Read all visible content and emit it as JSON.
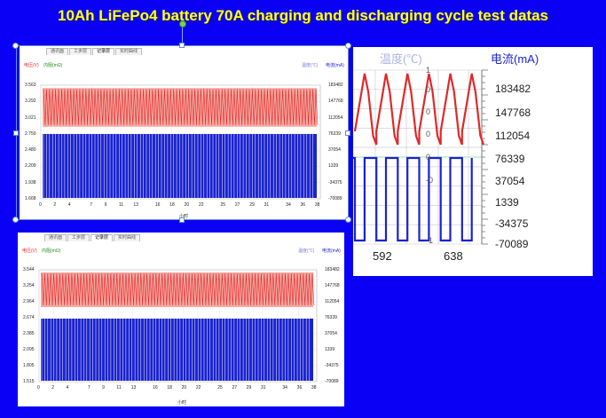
{
  "slide": {
    "title": "10Ah LiFePo4 battery 70A charging and discharging cycle test datas"
  },
  "tabs": [
    "通讯面",
    "工步层",
    "记录层",
    "实时曲线"
  ],
  "legend": {
    "voltage": "电压(V)",
    "resistance": "内阻(mΩ)",
    "temperature": "温度(℃)",
    "current": "电流(mA)"
  },
  "colors": {
    "voltage": "#e0282a",
    "voltage_band": "#f6a8a0",
    "current": "#1a22d0",
    "background": "#0a00f5",
    "title": "#ffff33"
  },
  "chart_data": [
    {
      "type": "line",
      "title": "",
      "xlabel": "小时",
      "xticks": [
        "0",
        "2",
        "4",
        "7",
        "9",
        "11",
        "13",
        "16",
        "18",
        "20",
        "22",
        "25",
        "27",
        "29",
        "31",
        "34",
        "36",
        "38"
      ],
      "x_max": 38.5,
      "left_yticks": [
        "3.563",
        "3.292",
        "3.021",
        "2.750",
        "2.480",
        "2.209",
        "1.938",
        "1.668"
      ],
      "right_yticks": [
        "183482",
        "147768",
        "112054",
        "76339",
        "37054",
        "1339",
        "-34375",
        "-70089"
      ],
      "left_ylim": [
        1.668,
        3.563
      ],
      "right_ylim": [
        -70089,
        183482
      ],
      "series": [
        {
          "name": "电压(V)",
          "axis": "left",
          "low": 2.9,
          "high": 3.5,
          "cycles": 90
        },
        {
          "name": "电流(mA)",
          "axis": "right",
          "low": -70089,
          "high": 70000,
          "cycles": 90
        }
      ],
      "grid": true
    },
    {
      "type": "line",
      "title": "",
      "xlabel": "小时",
      "xticks": [
        "0",
        "2",
        "4",
        "7",
        "9",
        "11",
        "13",
        "16",
        "18",
        "20",
        "22",
        "25",
        "27",
        "29",
        "31",
        "34",
        "36",
        "38"
      ],
      "x_max": 38.5,
      "left_yticks": [
        "3.544",
        "3.254",
        "2.964",
        "2.674",
        "2.385",
        "2.095",
        "1.805",
        "1.515"
      ],
      "right_yticks": [
        "183482",
        "147768",
        "112054",
        "76339",
        "37054",
        "1339",
        "-34375",
        "-70089"
      ],
      "left_ylim": [
        1.515,
        3.544
      ],
      "right_ylim": [
        -70089,
        183482
      ],
      "series": [
        {
          "name": "电压(V)",
          "axis": "left",
          "low": 2.9,
          "high": 3.48,
          "cycles": 90
        },
        {
          "name": "电流(mA)",
          "axis": "right",
          "low": -70089,
          "high": 70000,
          "cycles": 90
        }
      ],
      "grid": true
    },
    {
      "type": "line",
      "title": "",
      "xlabel": "",
      "xticks": [
        "592",
        "638"
      ],
      "right_yticks": [
        "183482",
        "147768",
        "112054",
        "76339",
        "37054",
        "1339",
        "-34375",
        "-70089"
      ],
      "temp_ticks": [
        "1",
        "0",
        "0",
        "0",
        "0",
        "-0",
        "-1"
      ],
      "series": [
        {
          "name": "电压(V)",
          "cycles": 6
        },
        {
          "name": "电流(mA)",
          "cycles": 6
        }
      ],
      "grid": true
    }
  ]
}
